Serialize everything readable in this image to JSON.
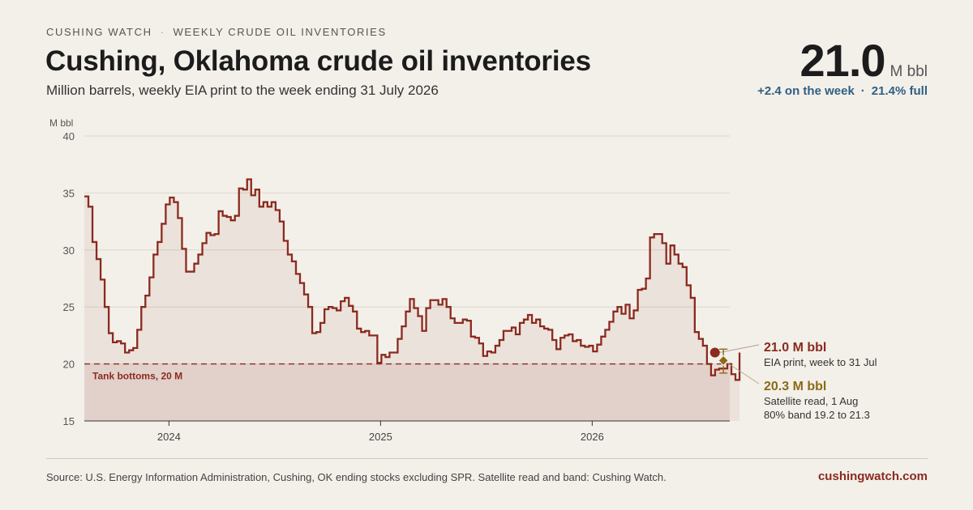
{
  "header": {
    "kicker_left": "CUSHING WATCH",
    "kicker_sep": "·",
    "kicker_right": "WEEKLY CRUDE OIL INVENTORIES",
    "title": "Cushing, Oklahoma crude oil inventories",
    "subtitle": "Million barrels, weekly EIA print to the week ending 31 July 2026"
  },
  "kpi": {
    "value": "21.0",
    "unit": "M bbl",
    "change": "+2.4 on the week",
    "sep": "·",
    "fill": "21.4% full"
  },
  "colors": {
    "line": "#8b2a1e",
    "satellite": "#8a6a16",
    "kpi_sub": "#2f5f82",
    "background": "#f3f0ea"
  },
  "chart_data": {
    "type": "line",
    "step": true,
    "ylabel": "M bbl",
    "ylim": [
      15,
      40
    ],
    "yticks": [
      "15",
      "20",
      "25",
      "30",
      "35",
      "40"
    ],
    "xlim": [
      2023.6,
      2026.65
    ],
    "xticks": [
      {
        "x": 2024.0,
        "label": "2024"
      },
      {
        "x": 2025.0,
        "label": "2025"
      },
      {
        "x": 2026.0,
        "label": "2026"
      }
    ],
    "grid": true,
    "series": [
      {
        "x_start": 2023.6,
        "x_step": 0.019231,
        "values": [
          34.7,
          33.8,
          30.7,
          29.2,
          27.4,
          25.0,
          22.7,
          21.9,
          22.0,
          21.8,
          21.0,
          21.2,
          21.4,
          23.0,
          25.0,
          26.0,
          27.6,
          29.6,
          30.7,
          32.3,
          34.0,
          34.6,
          34.2,
          32.8,
          30.1,
          28.1,
          28.1,
          28.8,
          29.6,
          30.6,
          31.5,
          31.3,
          31.4,
          33.4,
          33.0,
          32.9,
          32.6,
          33.0,
          35.4,
          35.3,
          36.2,
          34.8,
          35.3,
          33.8,
          34.2,
          33.8,
          34.2,
          33.5,
          32.5,
          30.8,
          29.6,
          29.0,
          27.9,
          27.1,
          26.1,
          25.0,
          22.7,
          22.8,
          23.6,
          24.8,
          25.0,
          24.9,
          24.7,
          25.5,
          25.8,
          25.1,
          24.6,
          23.1,
          22.8,
          22.9,
          22.5,
          22.5,
          20.1,
          20.8,
          20.6,
          21.0,
          21.0,
          22.2,
          23.3,
          24.6,
          25.7,
          24.9,
          24.2,
          22.9,
          24.9,
          25.6,
          25.6,
          25.2,
          25.7,
          25.0,
          24.0,
          23.6,
          23.6,
          23.9,
          23.8,
          22.4,
          22.3,
          21.8,
          20.7,
          21.1,
          21.0,
          21.6,
          22.1,
          22.9,
          22.9,
          23.2,
          22.6,
          23.6,
          23.9,
          24.3,
          23.6,
          23.9,
          23.3,
          23.1,
          23.0,
          22.1,
          21.3,
          22.3,
          22.5,
          22.6,
          22.0,
          22.1,
          21.6,
          21.5,
          21.6,
          21.1,
          21.7,
          22.4,
          23.0,
          23.7,
          24.6,
          25.0,
          24.4,
          25.2,
          24.0,
          24.7,
          26.5,
          26.6,
          27.5,
          31.1,
          31.4,
          31.4,
          30.6,
          28.8,
          30.4,
          29.6,
          28.8,
          28.5,
          26.9,
          25.8,
          22.8,
          22.2,
          21.6,
          20.0,
          19.0,
          19.5,
          19.6,
          19.6,
          20.0,
          19.1,
          18.6,
          21.0
        ]
      }
    ],
    "threshold": {
      "value": 20,
      "label": "Tank bottoms, 20 M"
    },
    "annotations": [
      {
        "value": "21.0 M bbl",
        "line1": "EIA print, week to 31 Jul"
      },
      {
        "value": "20.3 M bbl",
        "line1": "Satellite read, 1 Aug",
        "line2": "80% band 19.2 to 21.3"
      }
    ],
    "eia_point": {
      "x": 2026.58,
      "y": 21.0
    },
    "satellite_point": {
      "x": 2026.62,
      "y": 20.3,
      "low": 19.2,
      "high": 21.3
    }
  },
  "footer": {
    "source": "Source: U.S. Energy Information Administration, Cushing, OK ending stocks excluding SPR. Satellite read and band: Cushing Watch.",
    "brand": "cushingwatch.com"
  }
}
